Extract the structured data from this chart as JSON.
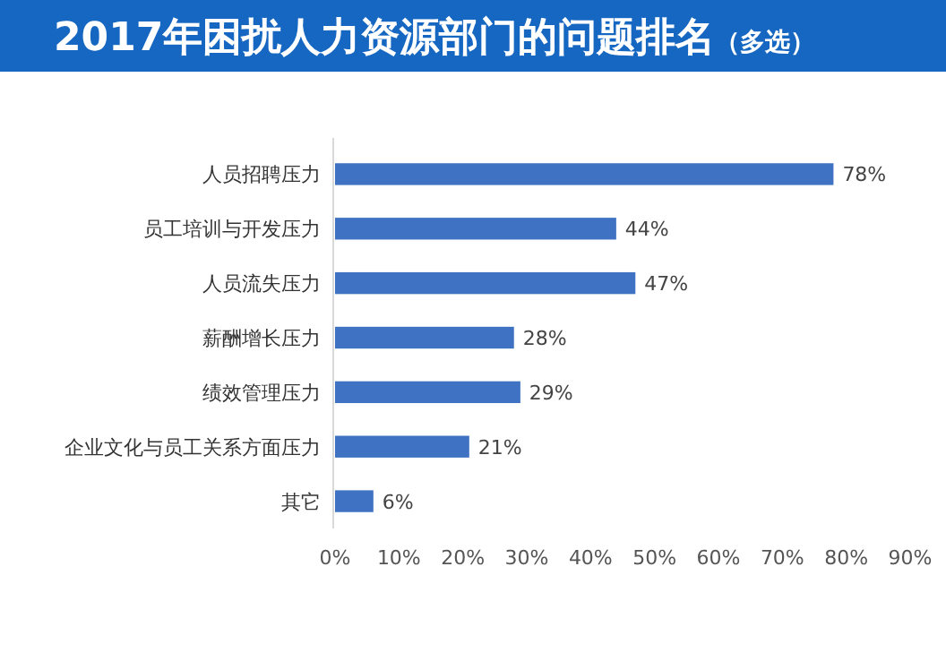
{
  "chart_data": {
    "type": "bar",
    "orientation": "horizontal",
    "title": "2017年困扰人力资源部门的问题排名",
    "subtitle": "（多选）",
    "categories": [
      "人员招聘压力",
      "员工培训与开发压力",
      "人员流失压力",
      "薪酬增长压力",
      "绩效管理压力",
      "企业文化与员工关系方面压力",
      "其它"
    ],
    "values": [
      78,
      44,
      47,
      28,
      29,
      21,
      6
    ],
    "value_labels": [
      "78%",
      "44%",
      "47%",
      "28%",
      "29%",
      "21%",
      "6%"
    ],
    "color": "#3f72c2",
    "xlim": [
      0,
      90
    ],
    "xticks": [
      {
        "value": 0,
        "label": "0%"
      },
      {
        "value": 10,
        "label": "10%"
      },
      {
        "value": 20,
        "label": "20%"
      },
      {
        "value": 30,
        "label": "30%"
      },
      {
        "value": 40,
        "label": "40%"
      },
      {
        "value": 50,
        "label": "50%"
      },
      {
        "value": 60,
        "label": "60%"
      },
      {
        "value": 70,
        "label": "70%"
      },
      {
        "value": 80,
        "label": "80%"
      },
      {
        "value": 90,
        "label": "90%"
      }
    ],
    "tick_labels": "x"
  }
}
